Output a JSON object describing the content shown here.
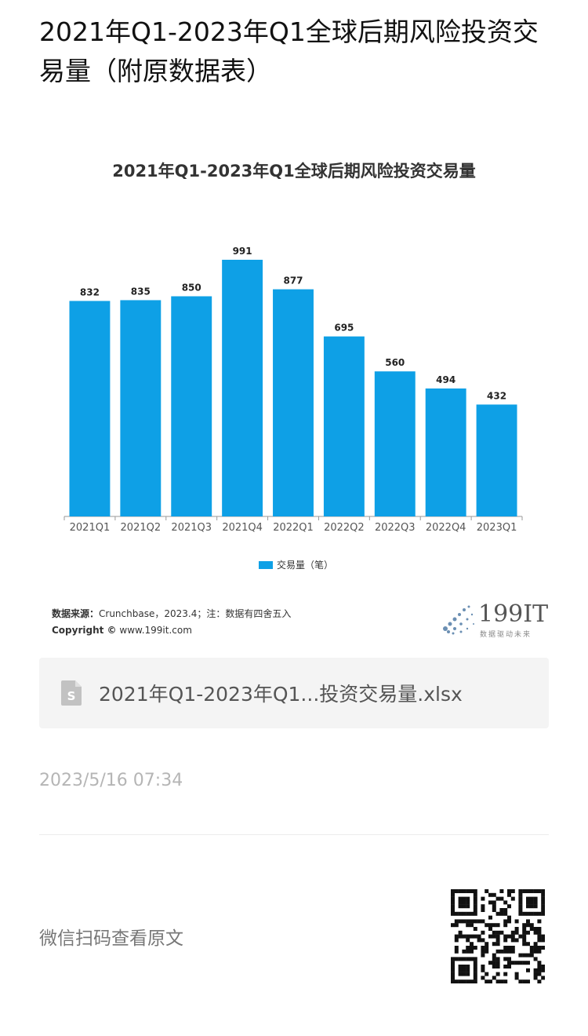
{
  "page": {
    "title": "2021年Q1-2023年Q1全球后期风险投资交易量（附原数据表）"
  },
  "chart_data": {
    "type": "bar",
    "title": "2021年Q1-2023年Q1全球后期风险投资交易量",
    "categories": [
      "2021Q1",
      "2021Q2",
      "2021Q3",
      "2021Q4",
      "2022Q1",
      "2022Q2",
      "2022Q3",
      "2022Q4",
      "2023Q1"
    ],
    "series": [
      {
        "name": "交易量（笔）",
        "values": [
          832,
          835,
          850,
          991,
          877,
          695,
          560,
          494,
          432
        ]
      }
    ],
    "ylim": [
      0,
      1000
    ],
    "grid": false,
    "legend": "bottom",
    "bar_color": "#0ea0e6"
  },
  "source": {
    "label": "数据来源：",
    "text": "Crunchbase，2023.4；注：数据有四舍五入",
    "copyright_label": "Copyright ©",
    "copyright_url": "www.199it.com"
  },
  "logo": {
    "number": "199IT",
    "slogan": "数据驱动未来"
  },
  "attachment": {
    "file_name": "2021年Q1-2023年Q1...投资交易量.xlsx",
    "icon": "spreadsheet-file-icon"
  },
  "timestamp": "2023/5/16 07:34",
  "footer": {
    "wechat_text": "微信扫码查看原文",
    "qr_icon": "qr-code-icon"
  }
}
